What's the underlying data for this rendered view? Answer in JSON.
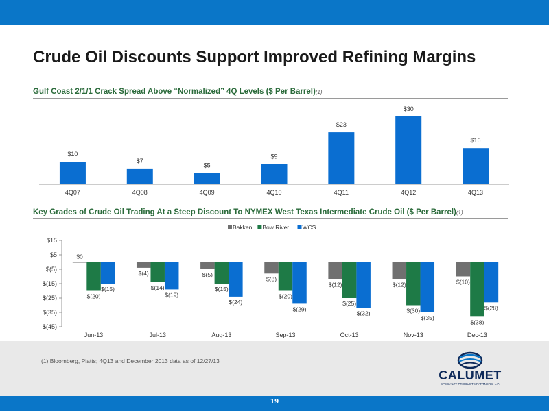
{
  "page": {
    "title": "Crude Oil Discounts Support Improved Refining Margins",
    "footnote": "(1)  Bloomberg, Platts; 4Q13 and December 2013 data as of 12/27/13",
    "page_number": "19"
  },
  "logo": {
    "name": "CALUMET",
    "tagline": "SPECIALTY PRODUCTS PARTNERS, L.P."
  },
  "colors": {
    "bar_blue": "#0a6ed1",
    "bakken": "#707070",
    "bow_river": "#1e7a46",
    "wcs": "#0a6ed1",
    "brand": "#0a76c8"
  },
  "chart_data": [
    {
      "type": "bar",
      "title": "Gulf Coast 2/1/1 Crack Spread Above “Normalized” 4Q Levels ($ Per Barrel)",
      "title_footnote": "(1)",
      "categories": [
        "4Q07",
        "4Q08",
        "4Q09",
        "4Q10",
        "4Q11",
        "4Q12",
        "4Q13"
      ],
      "values": [
        10,
        7,
        5,
        9,
        23,
        30,
        16
      ],
      "data_labels": [
        "$10",
        "$7",
        "$5",
        "$9",
        "$23",
        "$30",
        "$16"
      ],
      "ylim": [
        0,
        30
      ],
      "grid": false
    },
    {
      "type": "bar",
      "title": "Key Grades of Crude Oil Trading At a Steep Discount To NYMEX West Texas Intermediate Crude Oil ($ Per Barrel)",
      "title_footnote": "(1)",
      "categories": [
        "Jun-13",
        "Jul-13",
        "Aug-13",
        "Sep-13",
        "Oct-13",
        "Nov-13",
        "Dec-13"
      ],
      "series": [
        {
          "name": "Bakken",
          "values": [
            0,
            -4,
            -5,
            -8,
            -12,
            -12,
            -10
          ],
          "labels": [
            "$0",
            "$(4)",
            "$(5)",
            "$(8)",
            "$(12)",
            "$(12)",
            "$(10)"
          ]
        },
        {
          "name": "Bow River",
          "values": [
            -20,
            -14,
            -15,
            -20,
            -25,
            -30,
            -38
          ],
          "labels": [
            "$(20)",
            "$(14)",
            "$(15)",
            "$(20)",
            "$(25)",
            "$(30)",
            "$(38)"
          ]
        },
        {
          "name": "WCS",
          "values": [
            -15,
            -19,
            -24,
            -29,
            -32,
            -35,
            -28
          ],
          "labels": [
            "$(15)",
            "$(19)",
            "$(24)",
            "$(29)",
            "$(32)",
            "$(35)",
            "$(28)"
          ]
        }
      ],
      "y_ticks": [
        15,
        5,
        -5,
        -15,
        -25,
        -35,
        -45
      ],
      "y_tick_labels": [
        "$15",
        "$5",
        "$(5)",
        "$(15)",
        "$(25)",
        "$(35)",
        "$(45)"
      ],
      "ylim": [
        -45,
        15
      ],
      "legend": "top-center",
      "grid": false
    }
  ]
}
